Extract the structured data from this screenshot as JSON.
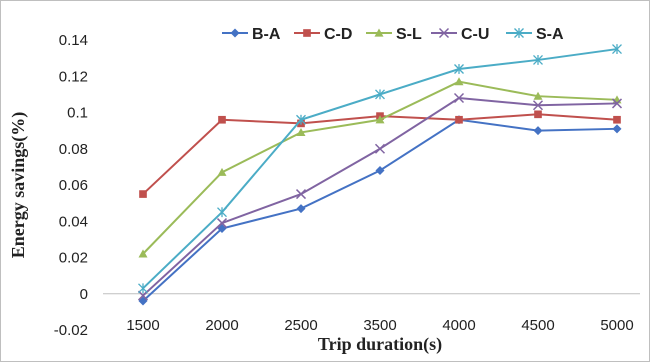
{
  "chart_data": {
    "type": "line",
    "title": "",
    "xlabel": "Trip duration(s)",
    "ylabel": "Energy savings(%)",
    "categories": [
      "1500",
      "2000",
      "2500",
      "3500",
      "4000",
      "4500",
      "5000"
    ],
    "ylim": [
      -0.02,
      0.14
    ],
    "yticks": [
      "-0.02",
      "0",
      "0.02",
      "0.04",
      "0.06",
      "0.08",
      "0.1",
      "0.12",
      "0.14"
    ],
    "ytick_values": [
      -0.02,
      0,
      0.02,
      0.04,
      0.06,
      0.08,
      0.1,
      0.12,
      0.14
    ],
    "grid": false,
    "legend_position": "top",
    "series": [
      {
        "name": "B-A",
        "color": "#4472c4",
        "marker": "diamond",
        "values": [
          -0.004,
          0.036,
          0.047,
          0.068,
          0.096,
          0.09,
          0.091
        ]
      },
      {
        "name": "C-D",
        "color": "#c0504d",
        "marker": "square",
        "values": [
          0.055,
          0.096,
          0.094,
          0.098,
          0.096,
          0.099,
          0.096
        ]
      },
      {
        "name": "S-L",
        "color": "#9bbb59",
        "marker": "triangle",
        "values": [
          0.022,
          0.067,
          0.089,
          0.096,
          0.117,
          0.109,
          0.107
        ]
      },
      {
        "name": "C-U",
        "color": "#8064a2",
        "marker": "x",
        "values": [
          -0.001,
          0.039,
          0.055,
          0.08,
          0.108,
          0.104,
          0.105
        ]
      },
      {
        "name": "S-A",
        "color": "#4bacc6",
        "marker": "star",
        "values": [
          0.003,
          0.045,
          0.096,
          0.11,
          0.124,
          0.129,
          0.135
        ]
      }
    ]
  }
}
